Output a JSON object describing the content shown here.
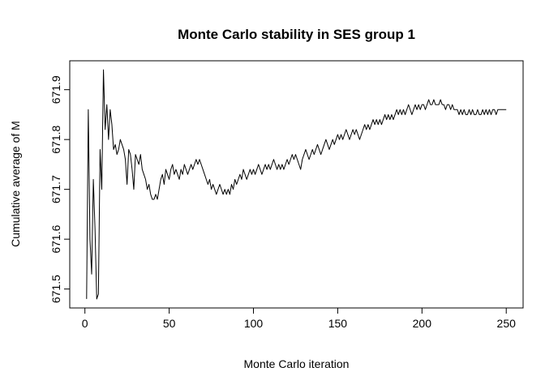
{
  "chart_data": {
    "type": "line",
    "title": "Monte Carlo stability in SES group 1",
    "xlabel": "Monte Carlo iteration",
    "ylabel": "Cumulative average of M",
    "x_ticks": [
      0,
      50,
      100,
      150,
      200,
      250
    ],
    "y_ticks": [
      671.5,
      671.6,
      671.7,
      671.8,
      671.9
    ],
    "xlim": [
      -9,
      260
    ],
    "ylim": [
      671.462,
      671.958
    ],
    "x_start": 1,
    "grid": "off",
    "legend": "none",
    "line_color": "#000000",
    "background_color": "#ffffff",
    "series": [
      {
        "name": "cumulative_average_of_M",
        "values": [
          671.48,
          671.86,
          671.6,
          671.53,
          671.72,
          671.62,
          671.48,
          671.49,
          671.78,
          671.7,
          671.94,
          671.82,
          671.87,
          671.8,
          671.86,
          671.83,
          671.78,
          671.79,
          671.77,
          671.78,
          671.8,
          671.79,
          671.78,
          671.76,
          671.71,
          671.78,
          671.77,
          671.74,
          671.7,
          671.77,
          671.76,
          671.75,
          671.77,
          671.74,
          671.73,
          671.72,
          671.7,
          671.71,
          671.69,
          671.68,
          671.68,
          671.69,
          671.68,
          671.7,
          671.72,
          671.73,
          671.71,
          671.74,
          671.73,
          671.72,
          671.74,
          671.75,
          671.73,
          671.74,
          671.73,
          671.72,
          671.74,
          671.73,
          671.75,
          671.74,
          671.73,
          671.74,
          671.75,
          671.74,
          671.75,
          671.76,
          671.75,
          671.76,
          671.75,
          671.74,
          671.73,
          671.72,
          671.71,
          671.72,
          671.7,
          671.71,
          671.7,
          671.69,
          671.7,
          671.71,
          671.7,
          671.69,
          671.7,
          671.69,
          671.7,
          671.69,
          671.71,
          671.7,
          671.72,
          671.71,
          671.72,
          671.73,
          671.72,
          671.74,
          671.73,
          671.72,
          671.73,
          671.74,
          671.73,
          671.74,
          671.73,
          671.74,
          671.75,
          671.74,
          671.73,
          671.74,
          671.75,
          671.74,
          671.75,
          671.74,
          671.75,
          671.76,
          671.75,
          671.74,
          671.75,
          671.74,
          671.75,
          671.74,
          671.75,
          671.76,
          671.75,
          671.76,
          671.77,
          671.76,
          671.77,
          671.76,
          671.75,
          671.74,
          671.76,
          671.77,
          671.78,
          671.77,
          671.76,
          671.77,
          671.78,
          671.77,
          671.78,
          671.79,
          671.78,
          671.77,
          671.78,
          671.79,
          671.8,
          671.79,
          671.78,
          671.79,
          671.8,
          671.79,
          671.8,
          671.81,
          671.8,
          671.81,
          671.8,
          671.81,
          671.82,
          671.81,
          671.8,
          671.81,
          671.82,
          671.81,
          671.82,
          671.81,
          671.8,
          671.81,
          671.82,
          671.83,
          671.82,
          671.83,
          671.82,
          671.83,
          671.84,
          671.83,
          671.84,
          671.83,
          671.84,
          671.83,
          671.84,
          671.85,
          671.84,
          671.85,
          671.84,
          671.85,
          671.84,
          671.85,
          671.86,
          671.85,
          671.86,
          671.85,
          671.86,
          671.85,
          671.86,
          671.87,
          671.86,
          671.85,
          671.86,
          671.87,
          671.86,
          671.87,
          671.86,
          671.87,
          671.87,
          671.86,
          671.87,
          671.88,
          671.87,
          671.87,
          671.88,
          671.87,
          671.87,
          671.87,
          671.88,
          671.87,
          671.87,
          671.86,
          671.87,
          671.87,
          671.86,
          671.87,
          671.86,
          671.86,
          671.86,
          671.85,
          671.86,
          671.85,
          671.86,
          671.85,
          671.85,
          671.86,
          671.85,
          671.86,
          671.85,
          671.85,
          671.86,
          671.85,
          671.85,
          671.86,
          671.85,
          671.86,
          671.85,
          671.86,
          671.85,
          671.86,
          671.86,
          671.85,
          671.86,
          671.86,
          671.86,
          671.86,
          671.86,
          671.86
        ]
      }
    ]
  }
}
